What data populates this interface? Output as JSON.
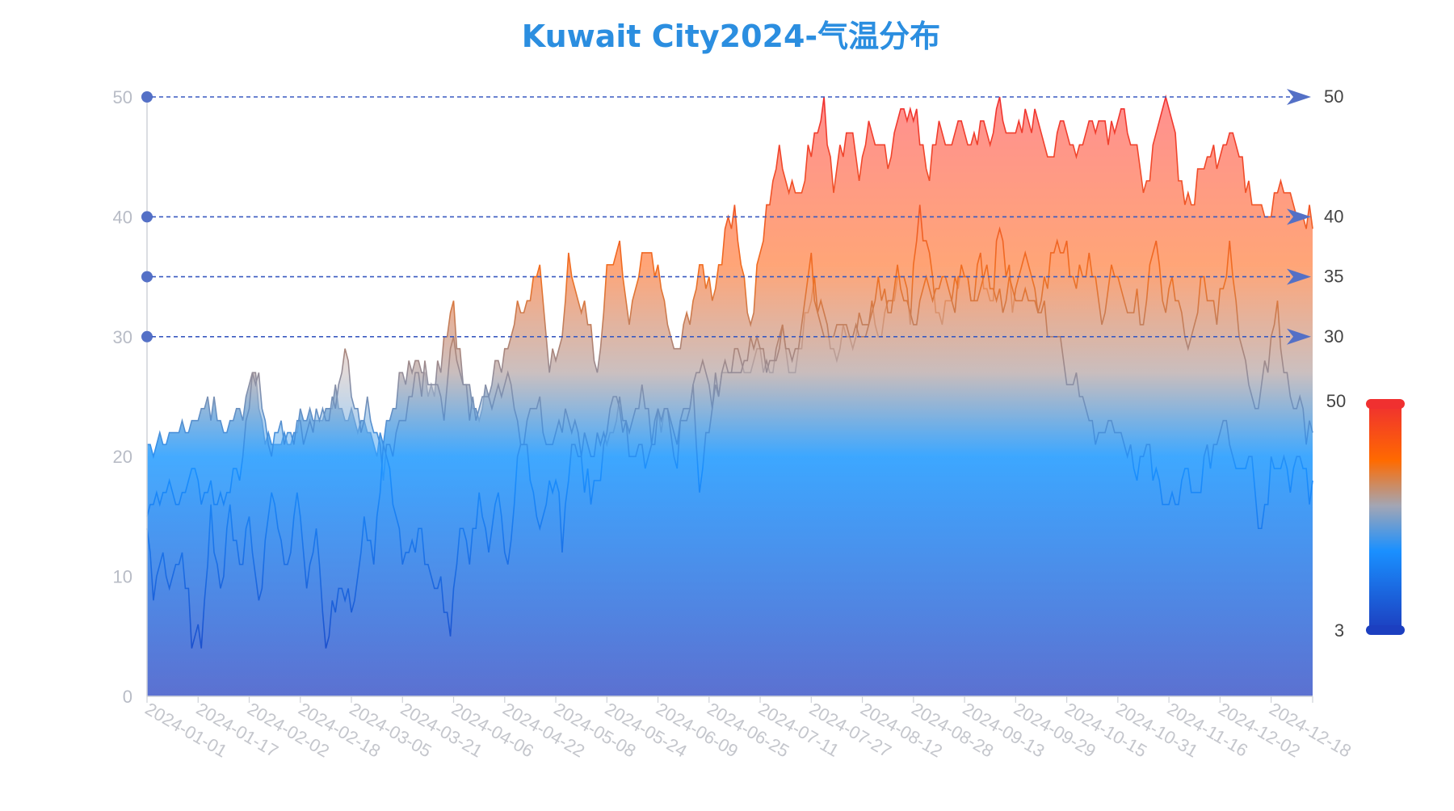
{
  "chart_data": {
    "type": "area",
    "title": "Kuwait City2024-气温分布",
    "y_ticks": [
      "0",
      "10",
      "20",
      "30",
      "40",
      "50"
    ],
    "ylim": [
      0,
      50
    ],
    "x_tick_labels": [
      "2024-01-01",
      "2024-01-17",
      "2024-02-02",
      "2024-02-18",
      "2024-03-05",
      "2024-03-21",
      "2024-04-06",
      "2024-04-22",
      "2024-05-08",
      "2024-05-24",
      "2024-06-09",
      "2024-06-25",
      "2024-07-11",
      "2024-07-27",
      "2024-08-12",
      "2024-08-28",
      "2024-09-13",
      "2024-09-29",
      "2024-10-15",
      "2024-10-31",
      "2024-11-16",
      "2024-12-02",
      "2024-12-18"
    ],
    "x_start": "2024-01-01",
    "x_end": "2024-12-31",
    "grid": false,
    "reference_lines": [
      {
        "value": 50,
        "label": "50"
      },
      {
        "value": 40,
        "label": "40"
      },
      {
        "value": 35,
        "label": "35"
      },
      {
        "value": 30,
        "label": "30"
      }
    ],
    "visual_map": {
      "min": 3,
      "max": 50,
      "min_label": "3",
      "max_label": "50",
      "colors": [
        "#1c3fc0",
        "#1a90ff",
        "#a3a6b4",
        "#ff6a00",
        "#f03030"
      ]
    },
    "series": [
      {
        "key": "max",
        "color_top": "#f03030",
        "anchors": [
          [
            1,
            20
          ],
          [
            8,
            22
          ],
          [
            16,
            23
          ],
          [
            20,
            25
          ],
          [
            25,
            22
          ],
          [
            31,
            24
          ],
          [
            34,
            28
          ],
          [
            38,
            21
          ],
          [
            45,
            21
          ],
          [
            50,
            24
          ],
          [
            55,
            22
          ],
          [
            60,
            25
          ],
          [
            66,
            23
          ],
          [
            70,
            22
          ],
          [
            75,
            21
          ],
          [
            80,
            26
          ],
          [
            85,
            28
          ],
          [
            90,
            25
          ],
          [
            94,
            29
          ],
          [
            97,
            32
          ],
          [
            100,
            27
          ],
          [
            105,
            24
          ],
          [
            110,
            27
          ],
          [
            114,
            30
          ],
          [
            118,
            32
          ],
          [
            122,
            34
          ],
          [
            124,
            36
          ],
          [
            127,
            28
          ],
          [
            131,
            31
          ],
          [
            133,
            36
          ],
          [
            136,
            33
          ],
          [
            140,
            31
          ],
          [
            142,
            26
          ],
          [
            145,
            35
          ],
          [
            149,
            37
          ],
          [
            152,
            31
          ],
          [
            156,
            36
          ],
          [
            159,
            37
          ],
          [
            163,
            33
          ],
          [
            166,
            28
          ],
          [
            171,
            32
          ],
          [
            175,
            36
          ],
          [
            178,
            34
          ],
          [
            182,
            38
          ],
          [
            185,
            40
          ],
          [
            190,
            31
          ],
          [
            193,
            37
          ],
          [
            196,
            42
          ],
          [
            199,
            45
          ],
          [
            202,
            43
          ],
          [
            206,
            42
          ],
          [
            210,
            47
          ],
          [
            213,
            49
          ],
          [
            216,
            43
          ],
          [
            220,
            47
          ],
          [
            224,
            44
          ],
          [
            227,
            48
          ],
          [
            231,
            45
          ],
          [
            234,
            44
          ],
          [
            237,
            50
          ],
          [
            240,
            49
          ],
          [
            243,
            47
          ],
          [
            246,
            44
          ],
          [
            249,
            47
          ],
          [
            252,
            46
          ],
          [
            256,
            48
          ],
          [
            259,
            46
          ],
          [
            262,
            48
          ],
          [
            265,
            46
          ],
          [
            268,
            50
          ],
          [
            272,
            46
          ],
          [
            276,
            48
          ],
          [
            280,
            48
          ],
          [
            284,
            45
          ],
          [
            288,
            48
          ],
          [
            292,
            46
          ],
          [
            296,
            48
          ],
          [
            300,
            48
          ],
          [
            303,
            47
          ],
          [
            307,
            49
          ],
          [
            311,
            46
          ],
          [
            313,
            41
          ],
          [
            316,
            45
          ],
          [
            320,
            50
          ],
          [
            324,
            44
          ],
          [
            328,
            41
          ],
          [
            332,
            45
          ],
          [
            336,
            45
          ],
          [
            340,
            48
          ],
          [
            344,
            44
          ],
          [
            348,
            42
          ],
          [
            352,
            40
          ],
          [
            355,
            43
          ],
          [
            358,
            42
          ],
          [
            361,
            40
          ],
          [
            365,
            40
          ]
        ]
      },
      {
        "key": "mean",
        "color_top": "#f07020",
        "anchors": [
          [
            1,
            15
          ],
          [
            8,
            17
          ],
          [
            16,
            18
          ],
          [
            25,
            16
          ],
          [
            31,
            20
          ],
          [
            34,
            28
          ],
          [
            40,
            21
          ],
          [
            45,
            22
          ],
          [
            50,
            22
          ],
          [
            55,
            24
          ],
          [
            60,
            24
          ],
          [
            63,
            29
          ],
          [
            66,
            23
          ],
          [
            70,
            24
          ],
          [
            75,
            19
          ],
          [
            80,
            22
          ],
          [
            85,
            26
          ],
          [
            90,
            27
          ],
          [
            94,
            23
          ],
          [
            97,
            31
          ],
          [
            100,
            25
          ],
          [
            105,
            23
          ],
          [
            110,
            25
          ],
          [
            114,
            27
          ],
          [
            118,
            22
          ],
          [
            124,
            24
          ],
          [
            127,
            20
          ],
          [
            131,
            23
          ],
          [
            136,
            22
          ],
          [
            140,
            20
          ],
          [
            145,
            22
          ],
          [
            149,
            24
          ],
          [
            152,
            22
          ],
          [
            156,
            26
          ],
          [
            159,
            22
          ],
          [
            163,
            24
          ],
          [
            166,
            21
          ],
          [
            171,
            25
          ],
          [
            175,
            27
          ],
          [
            178,
            25
          ],
          [
            182,
            27
          ],
          [
            185,
            28
          ],
          [
            190,
            27
          ],
          [
            193,
            29
          ],
          [
            196,
            26
          ],
          [
            199,
            31
          ],
          [
            202,
            27
          ],
          [
            206,
            30
          ],
          [
            210,
            34
          ],
          [
            213,
            33
          ],
          [
            216,
            29
          ],
          [
            220,
            30
          ],
          [
            224,
            31
          ],
          [
            227,
            32
          ],
          [
            231,
            30
          ],
          [
            234,
            33
          ],
          [
            237,
            36
          ],
          [
            240,
            32
          ],
          [
            243,
            41
          ],
          [
            246,
            36
          ],
          [
            249,
            31
          ],
          [
            252,
            33
          ],
          [
            256,
            35
          ],
          [
            259,
            33
          ],
          [
            262,
            37
          ],
          [
            265,
            32
          ],
          [
            268,
            39
          ],
          [
            272,
            33
          ],
          [
            276,
            36
          ],
          [
            280,
            33
          ],
          [
            284,
            36
          ],
          [
            288,
            38
          ],
          [
            292,
            34
          ],
          [
            296,
            36
          ],
          [
            300,
            32
          ],
          [
            303,
            35
          ],
          [
            307,
            33
          ],
          [
            311,
            33
          ],
          [
            313,
            31
          ],
          [
            316,
            38
          ],
          [
            320,
            33
          ],
          [
            324,
            34
          ],
          [
            328,
            29
          ],
          [
            332,
            35
          ],
          [
            336,
            31
          ],
          [
            340,
            37
          ],
          [
            344,
            28
          ],
          [
            348,
            25
          ],
          [
            352,
            27
          ],
          [
            355,
            32
          ],
          [
            358,
            26
          ],
          [
            361,
            25
          ],
          [
            365,
            22
          ]
        ]
      },
      {
        "key": "min",
        "color_top": "#1a6fe0",
        "anchors": [
          [
            1,
            13
          ],
          [
            3,
            9
          ],
          [
            6,
            12
          ],
          [
            9,
            9
          ],
          [
            12,
            13
          ],
          [
            15,
            5
          ],
          [
            18,
            5
          ],
          [
            21,
            15
          ],
          [
            24,
            8
          ],
          [
            27,
            16
          ],
          [
            30,
            11
          ],
          [
            33,
            14
          ],
          [
            36,
            8
          ],
          [
            39,
            16
          ],
          [
            42,
            15
          ],
          [
            45,
            10
          ],
          [
            48,
            16
          ],
          [
            51,
            10
          ],
          [
            54,
            14
          ],
          [
            57,
            4
          ],
          [
            60,
            8
          ],
          [
            63,
            9
          ],
          [
            66,
            7
          ],
          [
            69,
            15
          ],
          [
            72,
            11
          ],
          [
            75,
            20
          ],
          [
            78,
            17
          ],
          [
            81,
            11
          ],
          [
            84,
            12
          ],
          [
            87,
            14
          ],
          [
            90,
            10
          ],
          [
            93,
            9
          ],
          [
            96,
            6
          ],
          [
            99,
            14
          ],
          [
            102,
            11
          ],
          [
            105,
            16
          ],
          [
            108,
            12
          ],
          [
            111,
            18
          ],
          [
            114,
            10
          ],
          [
            117,
            20
          ],
          [
            120,
            21
          ],
          [
            123,
            14
          ],
          [
            126,
            17
          ],
          [
            129,
            19
          ],
          [
            131,
            13
          ],
          [
            134,
            21
          ],
          [
            137,
            19
          ],
          [
            140,
            17
          ],
          [
            143,
            18
          ],
          [
            146,
            23
          ],
          [
            149,
            24
          ],
          [
            152,
            20
          ],
          [
            155,
            21
          ],
          [
            158,
            20
          ],
          [
            161,
            23
          ],
          [
            164,
            24
          ],
          [
            166,
            19
          ],
          [
            169,
            23
          ],
          [
            172,
            25
          ],
          [
            174,
            18
          ],
          [
            178,
            24
          ],
          [
            181,
            27
          ],
          [
            184,
            26
          ],
          [
            188,
            29
          ],
          [
            191,
            30
          ],
          [
            194,
            28
          ],
          [
            197,
            27
          ],
          [
            200,
            31
          ],
          [
            203,
            27
          ],
          [
            206,
            30
          ],
          [
            209,
            36
          ],
          [
            212,
            30
          ],
          [
            215,
            29
          ],
          [
            218,
            30
          ],
          [
            221,
            31
          ],
          [
            224,
            30
          ],
          [
            227,
            31
          ],
          [
            230,
            34
          ],
          [
            233,
            32
          ],
          [
            236,
            35
          ],
          [
            239,
            33
          ],
          [
            242,
            32
          ],
          [
            245,
            34
          ],
          [
            248,
            33
          ],
          [
            251,
            35
          ],
          [
            254,
            33
          ],
          [
            257,
            35
          ],
          [
            260,
            33
          ],
          [
            263,
            36
          ],
          [
            266,
            34
          ],
          [
            269,
            33
          ],
          [
            272,
            35
          ],
          [
            275,
            33
          ],
          [
            278,
            34
          ],
          [
            281,
            32
          ],
          [
            284,
            31
          ],
          [
            287,
            29
          ],
          [
            290,
            27
          ],
          [
            293,
            25
          ],
          [
            296,
            23
          ],
          [
            299,
            21
          ],
          [
            302,
            22
          ],
          [
            305,
            23
          ],
          [
            308,
            21
          ],
          [
            311,
            19
          ],
          [
            314,
            21
          ],
          [
            317,
            18
          ],
          [
            320,
            16
          ],
          [
            323,
            15
          ],
          [
            326,
            20
          ],
          [
            329,
            16
          ],
          [
            332,
            19
          ],
          [
            335,
            20
          ],
          [
            338,
            22
          ],
          [
            341,
            21
          ],
          [
            344,
            18
          ],
          [
            347,
            20
          ],
          [
            350,
            13
          ],
          [
            353,
            19
          ],
          [
            356,
            20
          ],
          [
            359,
            17
          ],
          [
            362,
            20
          ],
          [
            365,
            17
          ]
        ]
      }
    ]
  }
}
